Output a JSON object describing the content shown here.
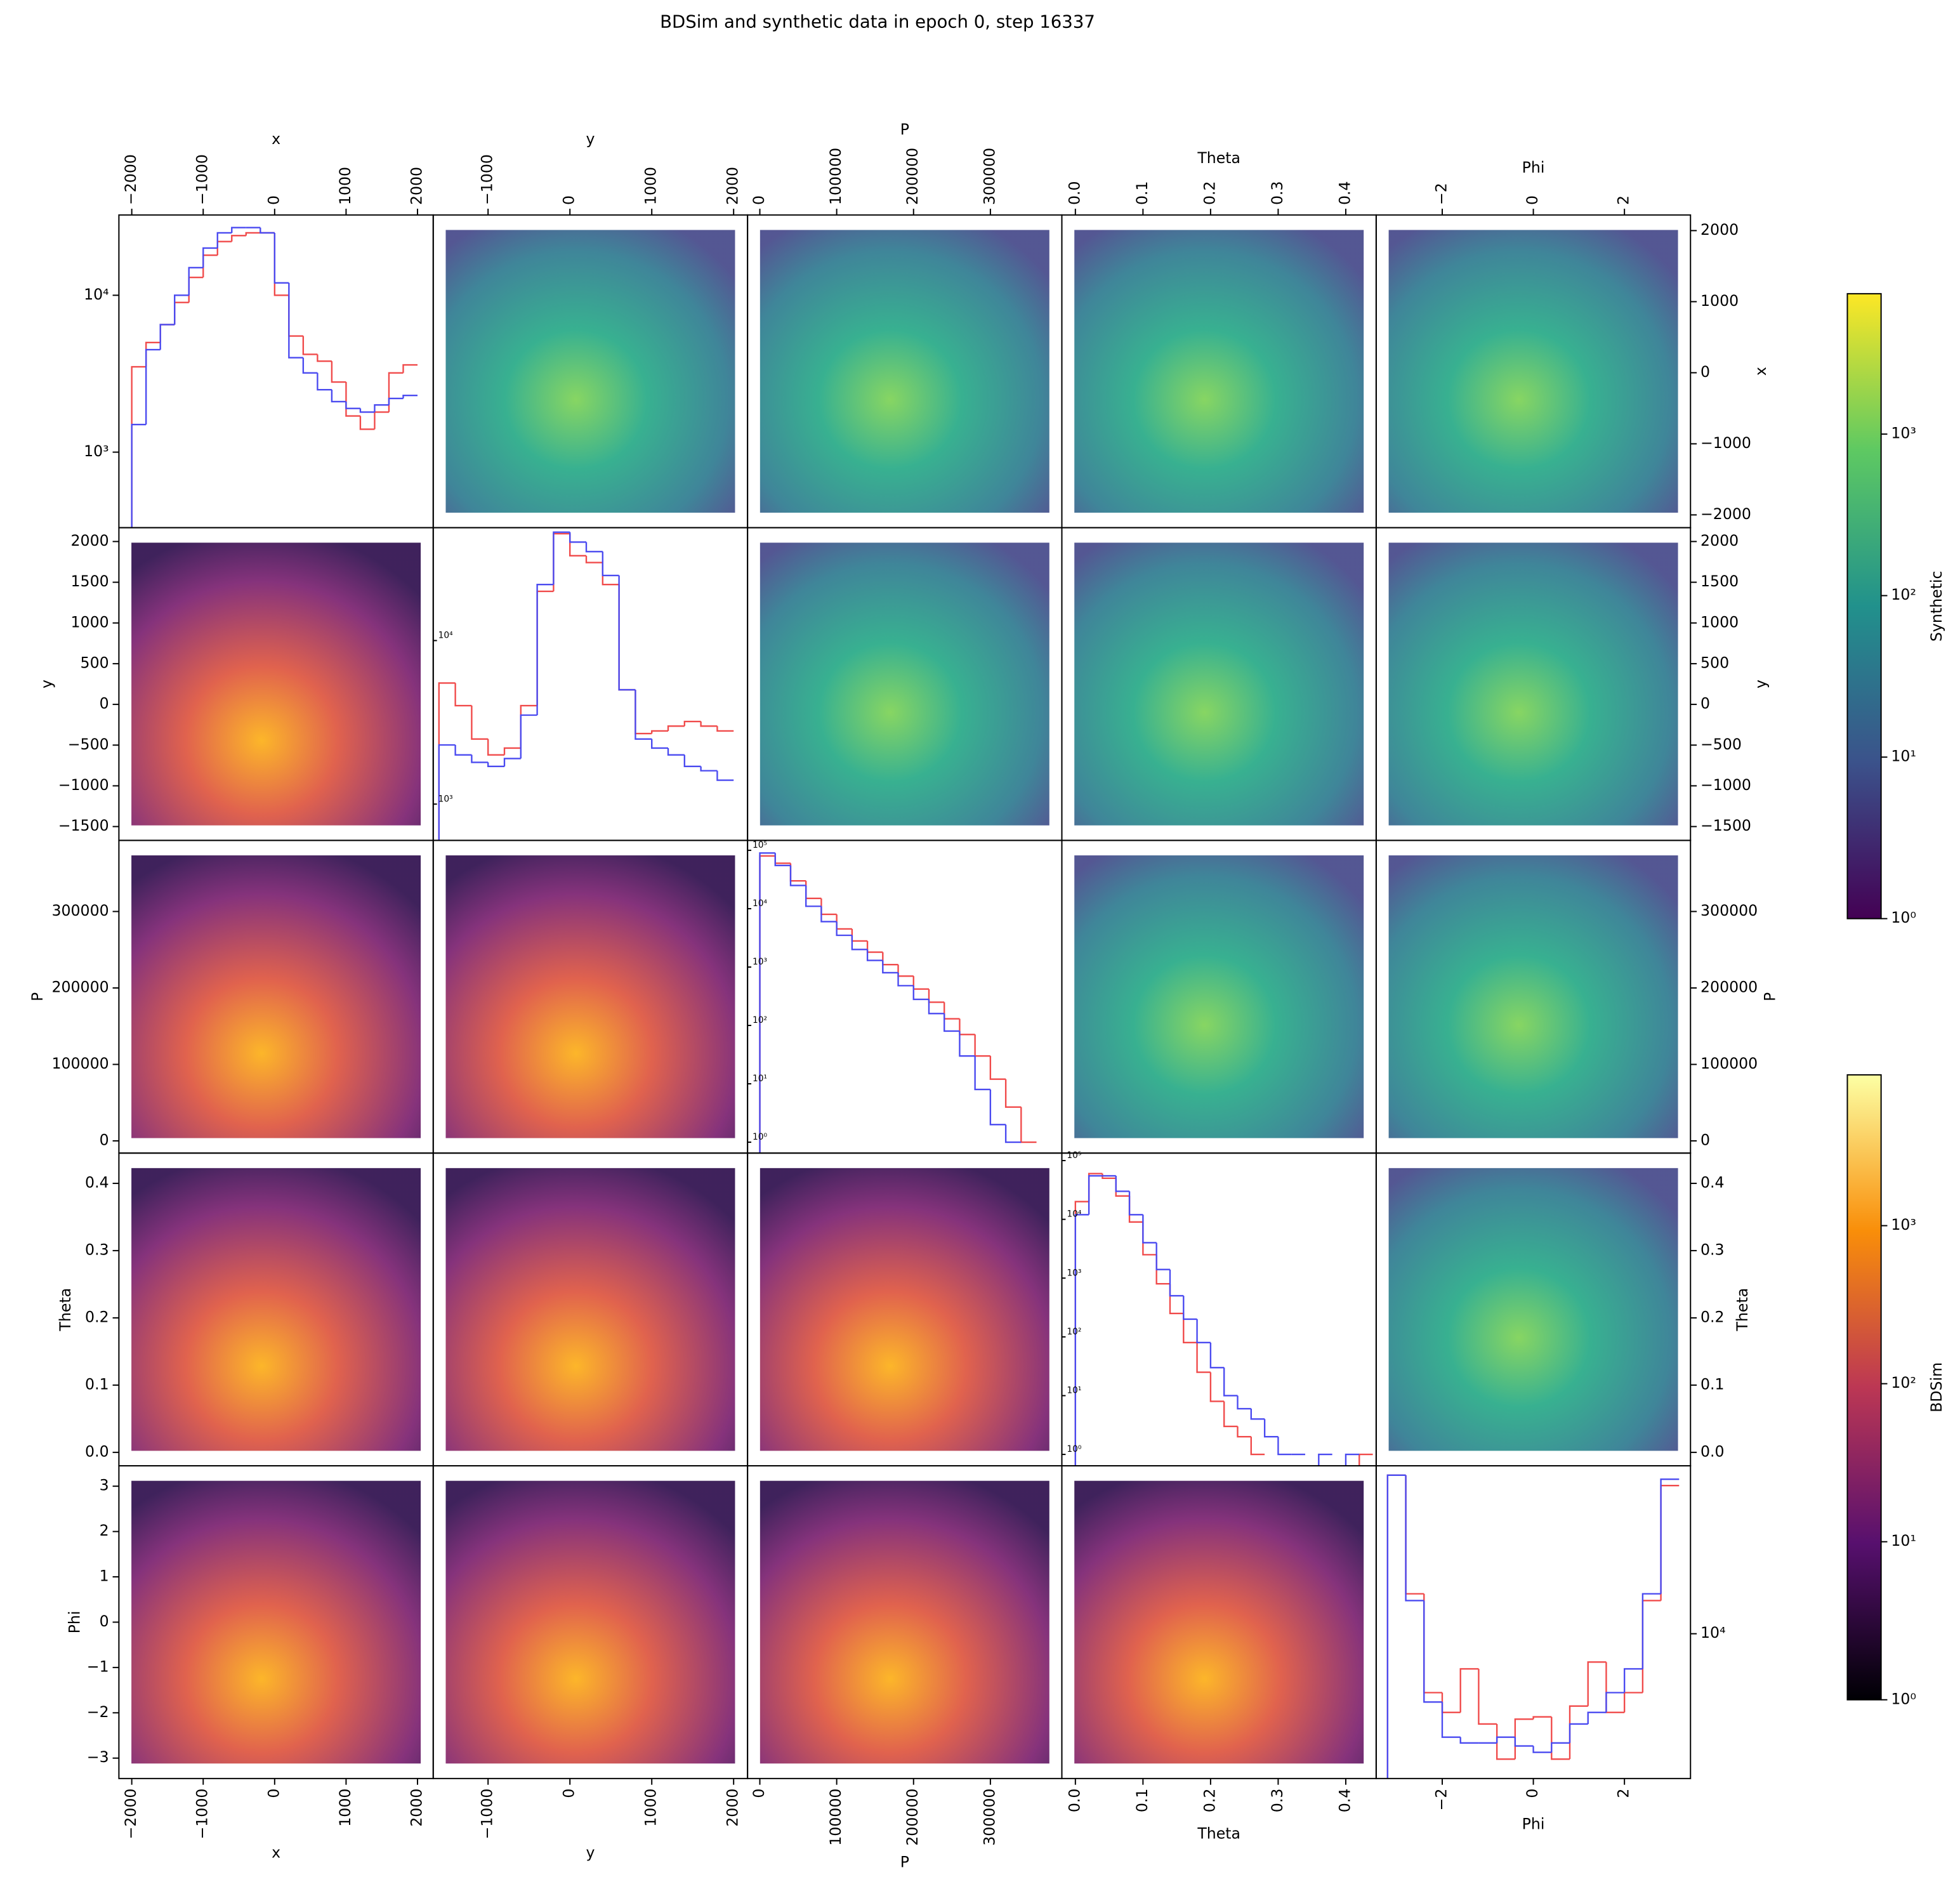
{
  "chart_data": {
    "type": "pairplot",
    "title": "BDSim and synthetic data in epoch 0, step 16337",
    "variables": [
      {
        "name": "x",
        "xlim": [
          -2180,
          2220
        ],
        "ylim": [
          -2180,
          2220
        ],
        "xticks": [
          {
            "value": -2000,
            "label": "−2000"
          },
          {
            "value": -1000,
            "label": "−1000"
          },
          0,
          1000,
          2000
        ],
        "yticks": [
          {
            "value": -2000,
            "label": "−2000"
          },
          {
            "value": -1000,
            "label": "−1000"
          },
          0,
          1000,
          2000
        ]
      },
      {
        "name": "y",
        "xlim": [
          -1670,
          2170
        ],
        "ylim": [
          -1670,
          2170
        ],
        "xticks": [
          {
            "value": -1000,
            "label": "−1000"
          },
          0,
          1000,
          2000
        ],
        "yticks": [
          {
            "value": -1500,
            "label": "−1500"
          },
          {
            "value": -1000,
            "label": "−1000"
          },
          {
            "value": -500,
            "label": "−500"
          },
          0,
          500,
          1000,
          1500,
          2000
        ]
      },
      {
        "name": "P",
        "xlim": [
          -16000,
          393000
        ],
        "ylim": [
          -16000,
          393000
        ],
        "xticks": [
          0,
          100000,
          200000,
          300000
        ],
        "yticks": [
          0,
          100000,
          200000,
          300000
        ]
      },
      {
        "name": "Theta",
        "xlim": [
          -0.02,
          0.445
        ],
        "ylim": [
          -0.02,
          0.445
        ],
        "xticks": [
          {
            "value": 0,
            "label": "0.0"
          },
          0.1,
          0.2,
          0.3,
          0.4
        ],
        "yticks": [
          {
            "value": 0,
            "label": "0.0"
          },
          0.1,
          0.2,
          0.3,
          0.4
        ]
      },
      {
        "name": "Phi",
        "xlim": [
          -3.45,
          3.45
        ],
        "ylim": [
          -3.45,
          3.45
        ],
        "xticks": [
          {
            "value": -2,
            "label": "−2"
          },
          0,
          2
        ],
        "yticks": [
          {
            "value": -3,
            "label": "−3"
          },
          {
            "value": -2,
            "label": "−2"
          },
          {
            "value": -1,
            "label": "−1"
          },
          0,
          1,
          2,
          3
        ]
      }
    ],
    "upper_colormap": "viridis",
    "lower_colormap": "inferno",
    "diagonal": [
      {
        "log_scale": true,
        "ytick_position": "outer-left",
        "ylim": [
          330,
          32500
        ],
        "yticks": [
          {
            "value": 1000,
            "label": "10³"
          },
          {
            "value": 10000,
            "label": "10⁴"
          }
        ],
        "bins": [
          -2000,
          -1800,
          -1600,
          -1400,
          -1200,
          -1000,
          -800,
          -600,
          -400,
          -200,
          0,
          200,
          400,
          600,
          800,
          1000,
          1200,
          1400,
          1600,
          1800,
          2000
        ],
        "series": [
          {
            "color": "#f04a4a",
            "values": [
              3500,
              5000,
              6500,
              9000,
              13000,
              18000,
              22000,
              24000,
              25000,
              25000,
              10000,
              5500,
              4200,
              3800,
              2800,
              1700,
              1400,
              1800,
              3200,
              3600
            ]
          },
          {
            "color": "#4a4af0",
            "values": [
              1500,
              4500,
              6500,
              10000,
              15000,
              20000,
              25000,
              27000,
              27000,
              25000,
              12000,
              4000,
              3200,
              2500,
              2100,
              1900,
              1800,
              2000,
              2200,
              2300
            ]
          }
        ]
      },
      {
        "log_scale": true,
        "ytick_position": "inner-left",
        "ylim": [
          600,
          49000
        ],
        "yticks": [
          {
            "value": 1000,
            "label": "10³"
          },
          {
            "value": 10000,
            "label": "10⁴"
          }
        ],
        "bins": [
          -1600,
          -1400,
          -1200,
          -1000,
          -800,
          -600,
          -400,
          -200,
          0,
          200,
          400,
          600,
          800,
          1000,
          1200,
          1400,
          1600,
          1800,
          2000
        ],
        "series": [
          {
            "color": "#f04a4a",
            "values": [
              5500,
              4000,
              2500,
              2000,
              2200,
              4000,
              20000,
              45000,
              33000,
              30000,
              22000,
              5000,
              2700,
              2800,
              3000,
              3200,
              3000,
              2800
            ]
          },
          {
            "color": "#4a4af0",
            "values": [
              2300,
              2000,
              1800,
              1700,
              1900,
              3500,
              22000,
              46000,
              40000,
              35000,
              25000,
              5000,
              2500,
              2200,
              2000,
              1700,
              1600,
              1400
            ]
          }
        ]
      },
      {
        "log_scale": true,
        "ytick_position": "inner-left",
        "ylim": [
          0.65,
          148000
        ],
        "yticks": [
          {
            "value": 1,
            "label": "10⁰"
          },
          {
            "value": 10,
            "label": "10¹"
          },
          {
            "value": 100,
            "label": "10²"
          },
          {
            "value": 1000,
            "label": "10³"
          },
          {
            "value": 10000,
            "label": "10⁴"
          },
          {
            "value": 100000,
            "label": "10⁵"
          }
        ],
        "bins": [
          0,
          20000,
          40000,
          60000,
          80000,
          100000,
          120000,
          140000,
          160000,
          180000,
          200000,
          220000,
          240000,
          260000,
          280000,
          300000,
          320000,
          340000,
          360000
        ],
        "series": [
          {
            "color": "#f04a4a",
            "values": [
              80000,
              60000,
              30000,
              15000,
              8000,
              4500,
              2800,
              1800,
              1100,
              700,
              420,
              250,
              130,
              70,
              30,
              12,
              4,
              1
            ]
          },
          {
            "color": "#4a4af0",
            "values": [
              90000,
              55000,
              25000,
              11000,
              6000,
              3500,
              2000,
              1300,
              800,
              480,
              280,
              160,
              80,
              30,
              8,
              2,
              1,
              null
            ]
          }
        ]
      },
      {
        "log_scale": true,
        "ytick_position": "inner-left",
        "ylim": [
          0.64,
          134000
        ],
        "yticks": [
          {
            "value": 1,
            "label": "10⁰"
          },
          {
            "value": 10,
            "label": "10¹"
          },
          {
            "value": 100,
            "label": "10²"
          },
          {
            "value": 1000,
            "label": "10³"
          },
          {
            "value": 10000,
            "label": "10⁴"
          },
          {
            "value": 100000,
            "label": "10⁵"
          }
        ],
        "bins": [
          0,
          0.02,
          0.04,
          0.06,
          0.08,
          0.1,
          0.12,
          0.14,
          0.16,
          0.18,
          0.2,
          0.22,
          0.24,
          0.26,
          0.28,
          0.3,
          0.32,
          0.34,
          0.36,
          0.38,
          0.4,
          0.42,
          0.44
        ],
        "series": [
          {
            "color": "#f04a4a",
            "values": [
              20000,
              60000,
              50000,
              25000,
              9000,
              2500,
              800,
              250,
              80,
              25,
              8,
              3,
              2,
              1,
              null,
              null,
              null,
              null,
              null,
              null,
              null,
              1
            ]
          },
          {
            "color": "#4a4af0",
            "values": [
              12000,
              55000,
              55000,
              30000,
              12000,
              4000,
              1400,
              500,
              200,
              80,
              30,
              10,
              6,
              4,
              2,
              1,
              1,
              null,
              1,
              null,
              1,
              null
            ]
          }
        ]
      },
      {
        "log_scale": true,
        "ytick_position": "outer-right",
        "ylim": [
          2300,
          55000
        ],
        "yticks": [
          {
            "value": 10000,
            "label": "10⁴"
          }
        ],
        "bins": [
          -3.2,
          -2.8,
          -2.4,
          -2.0,
          -1.6,
          -1.2,
          -0.8,
          -0.4,
          0,
          0.4,
          0.8,
          1.2,
          1.6,
          2.0,
          2.4,
          2.8,
          3.2
        ],
        "series": [
          {
            "color": "#f04a4a",
            "values": [
              50000,
              15000,
              5500,
              4500,
              7000,
              4000,
              2800,
              4200,
              4300,
              2800,
              4800,
              7500,
              4500,
              5500,
              14000,
              45000
            ]
          },
          {
            "color": "#4a4af0",
            "values": [
              50000,
              14000,
              5000,
              3500,
              3300,
              3300,
              3500,
              3200,
              3000,
              3300,
              4000,
              4500,
              5500,
              7000,
              15000,
              48000
            ]
          }
        ]
      }
    ],
    "colorbars": [
      {
        "label": "Synthetic",
        "colormap": "viridis",
        "log_scale": true,
        "lim": [
          1,
          7400
        ],
        "ticks": [
          {
            "value": 1,
            "label": "10⁰"
          },
          {
            "value": 10,
            "label": "10¹"
          },
          {
            "value": 100,
            "label": "10²"
          },
          {
            "value": 1000,
            "label": "10³"
          }
        ]
      },
      {
        "label": "BDSim",
        "colormap": "inferno",
        "log_scale": true,
        "lim": [
          1,
          9000
        ],
        "ticks": [
          {
            "value": 1,
            "label": "10⁰"
          },
          {
            "value": 10,
            "label": "10¹"
          },
          {
            "value": 100,
            "label": "10²"
          },
          {
            "value": 1000,
            "label": "10³"
          }
        ]
      }
    ]
  }
}
